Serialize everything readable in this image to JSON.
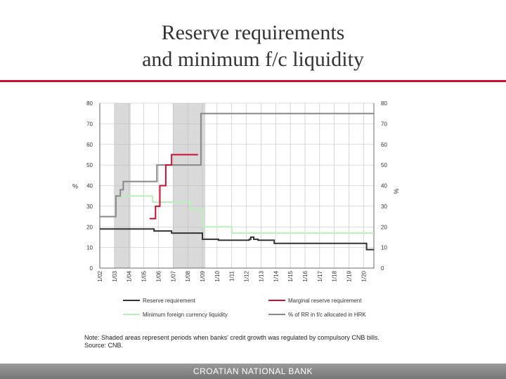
{
  "slide": {
    "title_line1": "Reserve requirements",
    "title_line2": "and minimum f/c liquidity",
    "note": "Note: Shaded areas represent periods when banks' credit growth was regulated by compulsory CNB bills.",
    "source": "Source: CNB.",
    "footer": "CROATIAN NATIONAL BANK",
    "accent_color": "#c8102e"
  },
  "chart_data": {
    "type": "line",
    "x_categories": [
      "1/02",
      "1/03",
      "1/04",
      "1/05",
      "1/06",
      "1/07",
      "1/08",
      "1/09",
      "1/10",
      "1/11",
      "1/12",
      "1/13",
      "1/14",
      "1/15",
      "1/16",
      "1/17",
      "1/18",
      "1/19",
      "1/20"
    ],
    "xlim": [
      2002.0,
      2020.7
    ],
    "ylim_left": [
      0,
      80
    ],
    "ylim_right": [
      0,
      80
    ],
    "y_ticks": [
      0,
      10,
      20,
      30,
      40,
      50,
      60,
      70,
      80
    ],
    "ylabel_left": "%",
    "ylabel_right": "%",
    "grid": true,
    "legend_position": "bottom",
    "shaded_periods": [
      [
        2003.0,
        2004.1
      ],
      [
        2007.0,
        2009.2
      ]
    ],
    "series": [
      {
        "name": "Reserve requirement",
        "color": "#333333",
        "x": [
          2002.0,
          2005.7,
          2005.7,
          2006.9,
          2006.9,
          2009.0,
          2009.0,
          2010.1,
          2010.1,
          2012.2,
          2012.2,
          2012.3,
          2012.3,
          2012.5,
          2012.5,
          2012.8,
          2012.8,
          2013.9,
          2013.9,
          2020.2,
          2020.2,
          2020.7
        ],
        "y": [
          19,
          19,
          18,
          18,
          17,
          17,
          14,
          14,
          13.5,
          13.5,
          14,
          14,
          15,
          15,
          14,
          14,
          13.5,
          13.5,
          12,
          12,
          9,
          9
        ]
      },
      {
        "name": "Marginal reserve requirement",
        "color": "#c8102e",
        "x": [
          2005.4,
          2005.8,
          2005.8,
          2006.1,
          2006.1,
          2006.5,
          2006.5,
          2006.9,
          2006.9,
          2008.7
        ],
        "y": [
          24,
          24,
          30,
          30,
          40,
          40,
          50,
          50,
          55,
          55
        ]
      },
      {
        "name": "Minimum foreign currency liquidity",
        "color": "#b8f0b8",
        "x": [
          2003.0,
          2005.6,
          2005.6,
          2008.2,
          2008.2,
          2009.0,
          2009.0,
          2011.0,
          2011.0,
          2020.7
        ],
        "y": [
          35,
          35,
          32,
          32,
          28.5,
          28.5,
          20,
          20,
          17,
          17
        ]
      },
      {
        "name": "% of RR in f/c allocated in HRK",
        "color": "#888888",
        "x": [
          2002.0,
          2003.1,
          2003.1,
          2003.4,
          2003.4,
          2003.6,
          2003.6,
          2005.9,
          2005.9,
          2006.1,
          2006.1,
          2008.9,
          2008.9,
          2020.7
        ],
        "y": [
          25,
          25,
          35,
          35,
          38,
          38,
          42,
          42,
          50,
          50,
          50,
          50,
          75,
          75
        ]
      }
    ]
  }
}
